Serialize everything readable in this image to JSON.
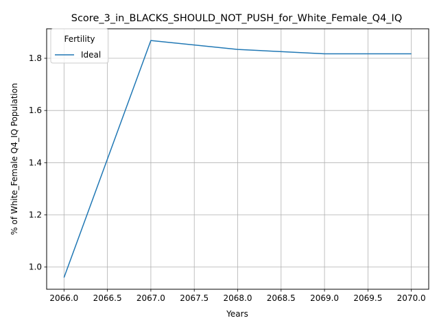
{
  "chart_data": {
    "type": "line",
    "title": "Score_3_in_BLACKS_SHOULD_NOT_PUSH_for_White_Female_Q4_IQ",
    "xlabel": "Years",
    "ylabel": "% of White_Female Q4_IQ Population",
    "x": [
      2066,
      2067,
      2068,
      2069,
      2070
    ],
    "series": [
      {
        "name": "Ideal",
        "color": "#1f77b4",
        "values": [
          0.96,
          1.868,
          1.834,
          1.817,
          1.817
        ]
      }
    ],
    "xlim": [
      2065.8,
      2070.2
    ],
    "ylim": [
      0.915,
      1.913
    ],
    "xticks": [
      "2066.0",
      "2066.5",
      "2067.0",
      "2067.5",
      "2068.0",
      "2068.5",
      "2069.0",
      "2069.5",
      "2070.0"
    ],
    "yticks": [
      "1.0",
      "1.2",
      "1.4",
      "1.6",
      "1.8"
    ],
    "grid": true,
    "legend": {
      "title": "Fertility",
      "position": "upper left"
    }
  }
}
